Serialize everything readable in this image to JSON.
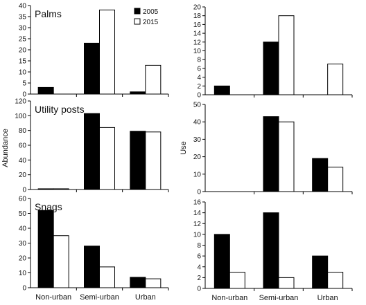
{
  "figure": {
    "ylabel_left": "Abundance",
    "ylabel_right": "Use",
    "x_categories": [
      "Non-urban",
      "Semi-urban",
      "Urban"
    ],
    "legend": [
      {
        "label": "2005",
        "color": "#000000"
      },
      {
        "label": "2015",
        "color": "#ffffff"
      }
    ]
  },
  "chart_data": [
    {
      "type": "bar",
      "panel": "top-left",
      "title": "Palms",
      "categories": [
        "Non-urban",
        "Semi-urban",
        "Urban"
      ],
      "series": [
        {
          "name": "2005",
          "values": [
            3,
            23,
            1
          ]
        },
        {
          "name": "2015",
          "values": [
            0,
            38,
            13
          ]
        }
      ],
      "ylim": [
        0,
        40
      ],
      "yticks": [
        0,
        5,
        10,
        15,
        20,
        25,
        30,
        35,
        40
      ],
      "ylabel": "Abundance",
      "legend_position": "top-right",
      "grid": false
    },
    {
      "type": "bar",
      "panel": "top-right",
      "title": "",
      "categories": [
        "Non-urban",
        "Semi-urban",
        "Urban"
      ],
      "series": [
        {
          "name": "2005",
          "values": [
            2,
            12,
            0
          ]
        },
        {
          "name": "2015",
          "values": [
            0,
            18,
            7
          ]
        }
      ],
      "ylim": [
        0,
        20
      ],
      "yticks": [
        0,
        2,
        4,
        6,
        8,
        10,
        12,
        14,
        16,
        18,
        20
      ],
      "ylabel": "Use",
      "grid": false
    },
    {
      "type": "bar",
      "panel": "middle-left",
      "title": "Utility posts",
      "categories": [
        "Non-urban",
        "Semi-urban",
        "Urban"
      ],
      "series": [
        {
          "name": "2005",
          "values": [
            1,
            103,
            79
          ]
        },
        {
          "name": "2015",
          "values": [
            1,
            84,
            78
          ]
        }
      ],
      "ylim": [
        0,
        120
      ],
      "yticks": [
        0,
        20,
        40,
        60,
        80,
        100,
        120
      ],
      "ylabel": "Abundance",
      "grid": false
    },
    {
      "type": "bar",
      "panel": "middle-right",
      "title": "",
      "categories": [
        "Non-urban",
        "Semi-urban",
        "Urban"
      ],
      "series": [
        {
          "name": "2005",
          "values": [
            0,
            43,
            19
          ]
        },
        {
          "name": "2015",
          "values": [
            0,
            40,
            14
          ]
        }
      ],
      "ylim": [
        0,
        50
      ],
      "yticks": [
        0,
        10,
        20,
        30,
        40,
        50
      ],
      "ylabel": "Use",
      "grid": false
    },
    {
      "type": "bar",
      "panel": "bottom-left",
      "title": "Snags",
      "categories": [
        "Non-urban",
        "Semi-urban",
        "Urban"
      ],
      "series": [
        {
          "name": "2005",
          "values": [
            52,
            28,
            7
          ]
        },
        {
          "name": "2015",
          "values": [
            35,
            14,
            6
          ]
        }
      ],
      "ylim": [
        0,
        60
      ],
      "yticks": [
        0,
        10,
        20,
        30,
        40,
        50,
        60
      ],
      "ylabel": "Abundance",
      "grid": false
    },
    {
      "type": "bar",
      "panel": "bottom-right",
      "title": "",
      "categories": [
        "Non-urban",
        "Semi-urban",
        "Urban"
      ],
      "series": [
        {
          "name": "2005",
          "values": [
            10,
            14,
            6
          ]
        },
        {
          "name": "2015",
          "values": [
            3,
            2,
            3
          ]
        }
      ],
      "ylim": [
        0,
        16
      ],
      "yticks": [
        0,
        2,
        4,
        6,
        8,
        10,
        12,
        14,
        16
      ],
      "ylabel": "Use",
      "grid": false
    }
  ]
}
